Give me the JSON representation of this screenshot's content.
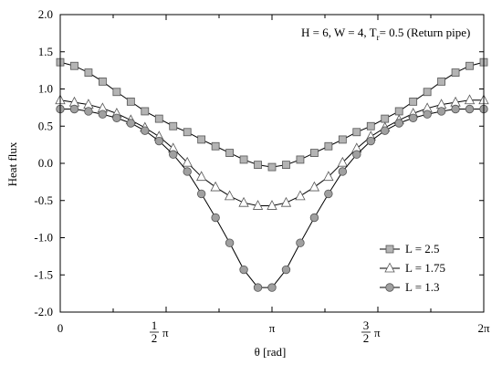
{
  "chart_data": {
    "type": "line",
    "xlabel": "θ [rad]",
    "ylabel": "Heat flux",
    "annotation": {
      "prefix": "H = 6, W = 4, T",
      "subscript": "r",
      "suffix": "= 0.5 (Return pipe)"
    },
    "xlim": [
      0,
      6.2832
    ],
    "ylim": [
      -2.0,
      2.0
    ],
    "x_ticks": [
      {
        "value": 0,
        "label": "0"
      },
      {
        "value": 1.5708,
        "frac_num": "1",
        "frac_den": "2",
        "label": "π"
      },
      {
        "value": 3.1416,
        "label": "π"
      },
      {
        "value": 4.7124,
        "frac_num": "3",
        "frac_den": "2",
        "label": "π"
      },
      {
        "value": 6.2832,
        "label": "2π"
      }
    ],
    "y_ticks": [
      {
        "value": 2.0,
        "label": "2.0"
      },
      {
        "value": 1.5,
        "label": "1.5"
      },
      {
        "value": 1.0,
        "label": "1.0"
      },
      {
        "value": 0.5,
        "label": "0.5"
      },
      {
        "value": 0.0,
        "label": "0.0"
      },
      {
        "value": -0.5,
        "label": "-0.5"
      },
      {
        "value": -1.0,
        "label": "-1.0"
      },
      {
        "value": -1.5,
        "label": "-1.5"
      },
      {
        "value": -2.0,
        "label": "-2.0"
      }
    ],
    "grid": false,
    "legend_position": "bottom-right",
    "x": [
      0,
      0.2094,
      0.4189,
      0.6283,
      0.8378,
      1.0472,
      1.2566,
      1.4661,
      1.6755,
      1.885,
      2.0944,
      2.3038,
      2.5133,
      2.7227,
      2.9322,
      3.1416,
      3.351,
      3.5605,
      3.7699,
      3.9794,
      4.1888,
      4.3982,
      4.6077,
      4.8171,
      5.0265,
      5.236,
      5.4454,
      5.6549,
      5.8643,
      6.0737,
      6.2832
    ],
    "series": [
      {
        "name": "L = 2.5",
        "marker": "square",
        "fill": "#b4b4b4",
        "values": [
          1.36,
          1.31,
          1.22,
          1.1,
          0.96,
          0.83,
          0.7,
          0.6,
          0.5,
          0.42,
          0.32,
          0.23,
          0.14,
          0.05,
          -0.02,
          -0.05,
          -0.02,
          0.05,
          0.14,
          0.23,
          0.32,
          0.42,
          0.5,
          0.6,
          0.7,
          0.83,
          0.96,
          1.1,
          1.22,
          1.31,
          1.36
        ]
      },
      {
        "name": "L = 1.75",
        "marker": "triangle",
        "fill": "#ffffff",
        "values": [
          0.85,
          0.82,
          0.79,
          0.74,
          0.67,
          0.58,
          0.48,
          0.36,
          0.2,
          0.01,
          -0.18,
          -0.32,
          -0.44,
          -0.53,
          -0.57,
          -0.57,
          -0.53,
          -0.44,
          -0.32,
          -0.18,
          0.01,
          0.2,
          0.36,
          0.48,
          0.58,
          0.67,
          0.74,
          0.79,
          0.82,
          0.85,
          0.85
        ]
      },
      {
        "name": "L = 1.3",
        "marker": "circle",
        "fill": "#a0a0a0",
        "values": [
          0.73,
          0.73,
          0.7,
          0.66,
          0.61,
          0.54,
          0.44,
          0.3,
          0.12,
          -0.11,
          -0.41,
          -0.73,
          -1.07,
          -1.43,
          -1.67,
          -1.67,
          -1.43,
          -1.07,
          -0.73,
          -0.41,
          -0.11,
          0.12,
          0.3,
          0.44,
          0.54,
          0.61,
          0.66,
          0.7,
          0.73,
          0.73,
          0.73
        ]
      }
    ]
  }
}
